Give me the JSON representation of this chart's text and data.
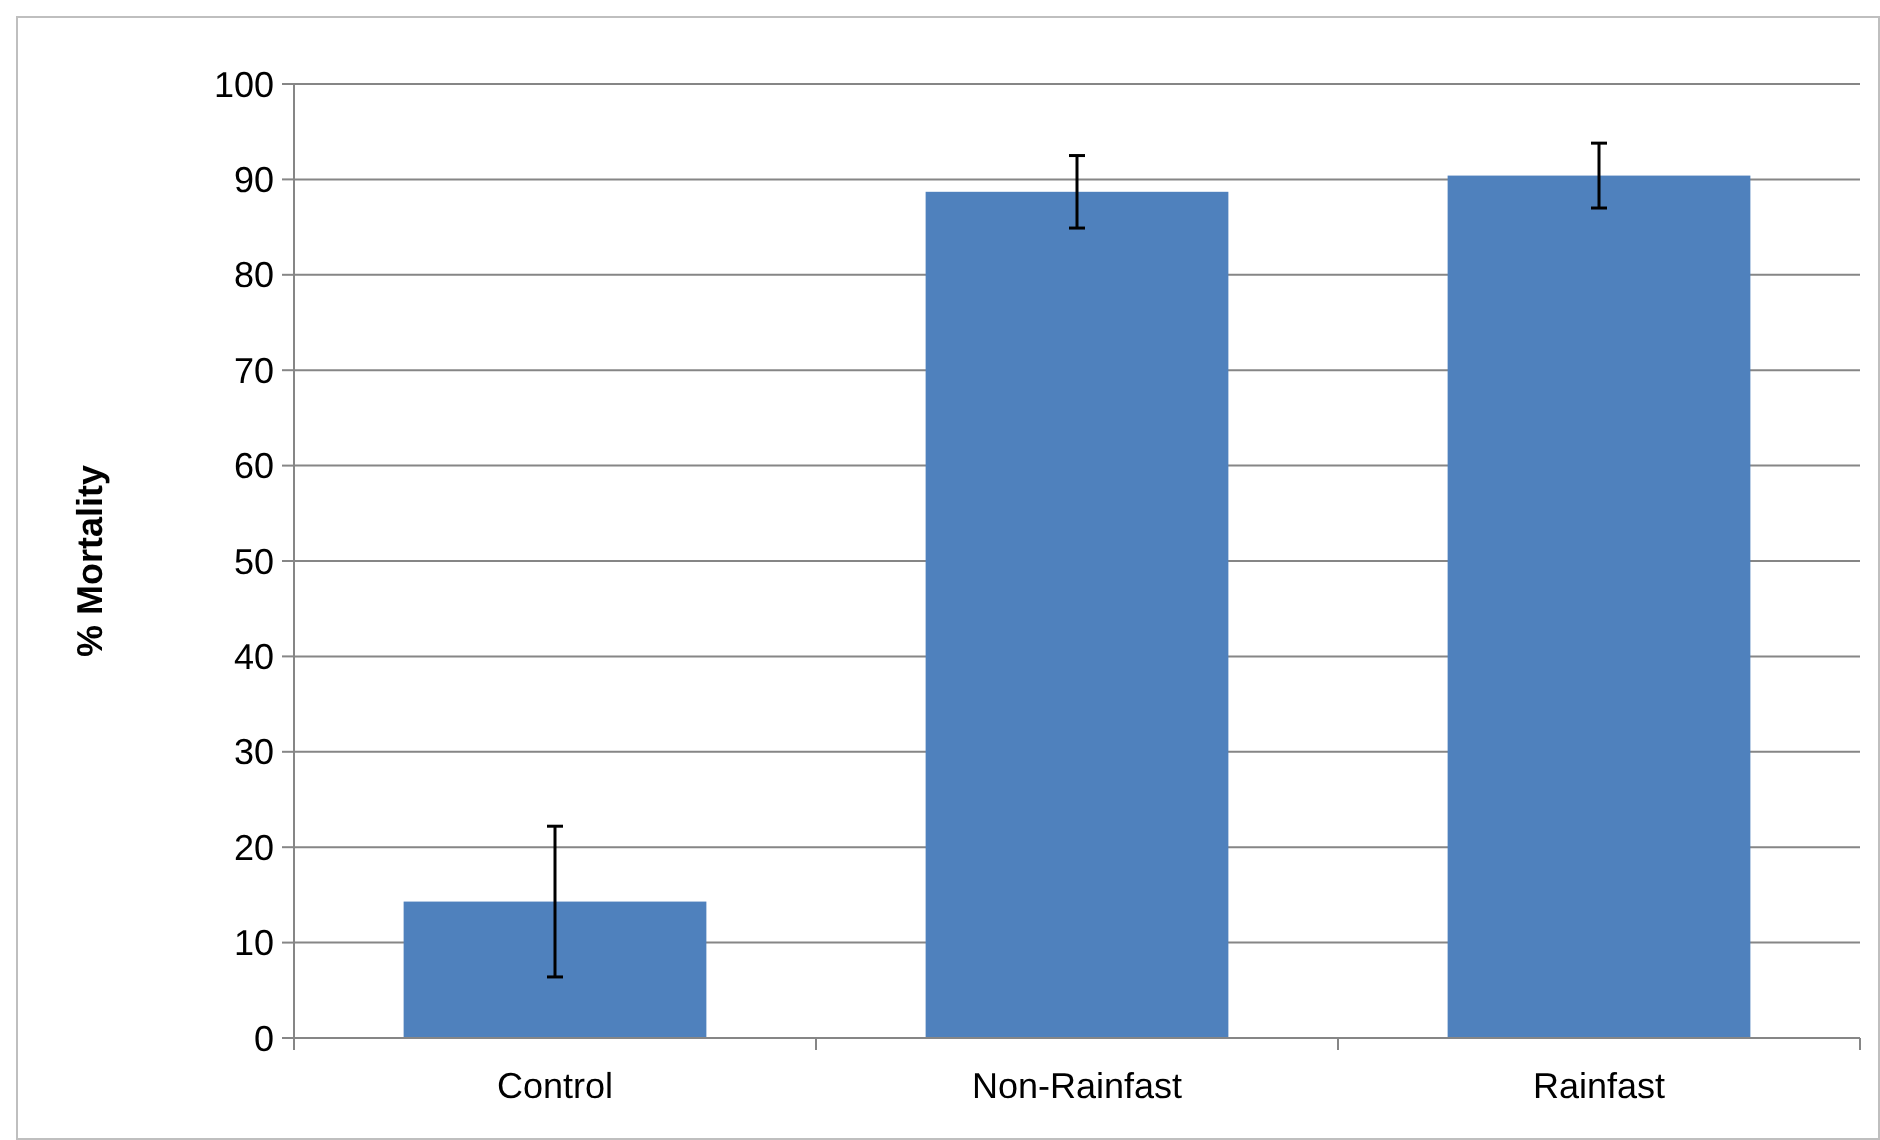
{
  "chart_data": {
    "type": "bar",
    "ylabel": "% Mortality",
    "categories": [
      "Control",
      "Non-Rainfast",
      "Rainfast"
    ],
    "values": [
      14.3,
      88.7,
      90.4
    ],
    "errors": [
      7.9,
      3.8,
      3.4
    ],
    "color": "#4f81bd",
    "ylim": [
      0,
      100
    ],
    "yticks": [
      0,
      10,
      20,
      30,
      40,
      50,
      60,
      70,
      80,
      90,
      100
    ],
    "grid": "y"
  }
}
